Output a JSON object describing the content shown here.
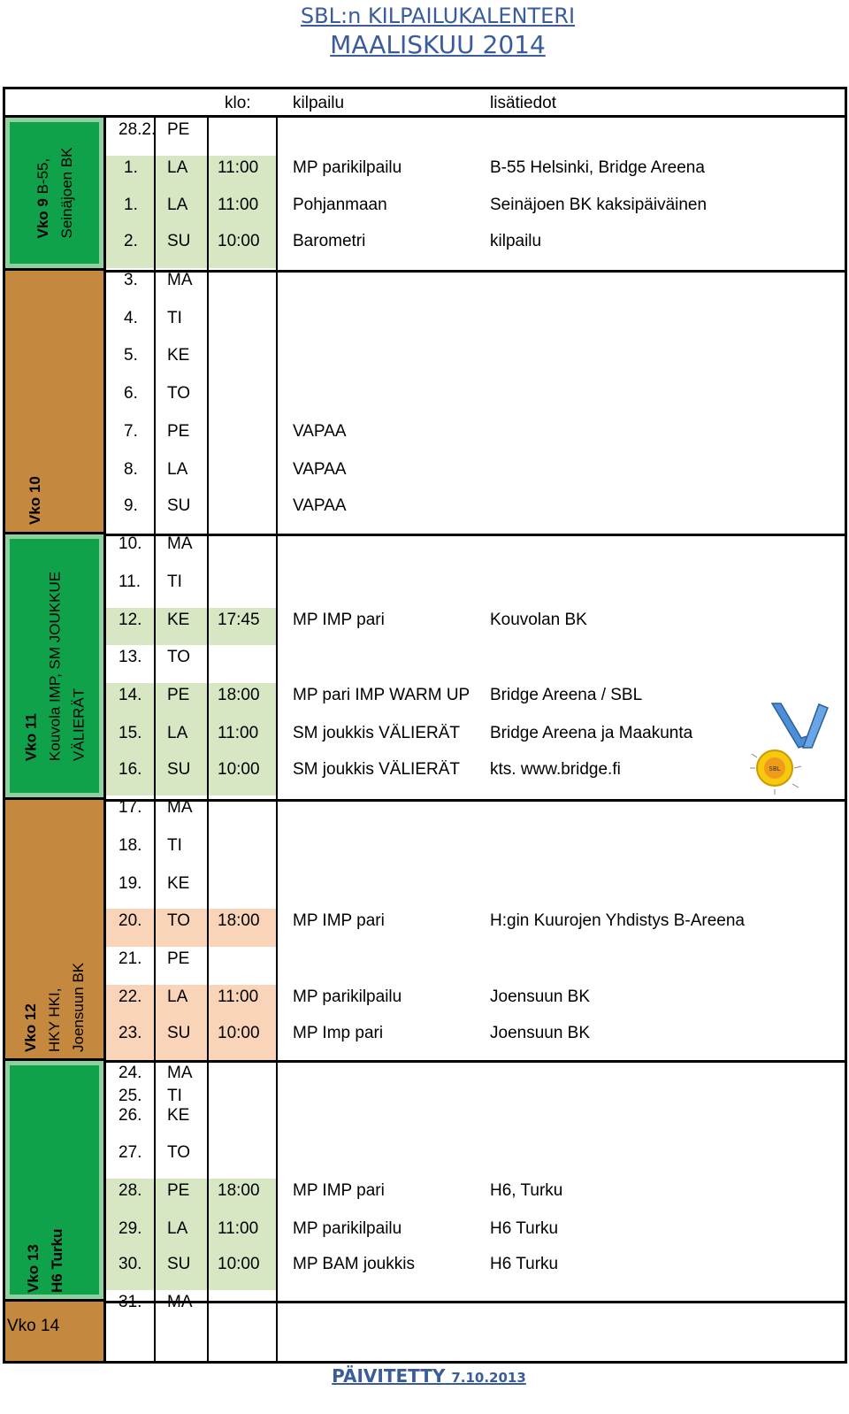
{
  "title": {
    "line1": "SBL:n KILPAILUKALENTERI",
    "line2": "MAALISKUU 2014"
  },
  "headers": {
    "time": "klo:",
    "event": "kilpailu",
    "info": "lisätiedot"
  },
  "weeks": [
    {
      "label_bold": "Vko 9",
      "label_rest": "B-55,",
      "line2": "Seinäjoen BK",
      "line3": ""
    },
    {
      "label_bold": "Vko 10",
      "label_rest": "",
      "line2": "",
      "line3": ""
    },
    {
      "label_bold": "Vko  11",
      "label_rest": "",
      "line2": "Kouvola IMP, SM JOUKKUE",
      "line3": "VÄLIERÄT"
    },
    {
      "label_bold": "Vko 12",
      "label_rest": "",
      "line2": "HKY HKI,",
      "line3": "Joensuun BK"
    },
    {
      "label_bold": "Vko 13",
      "label_rest": "",
      "line2": "H6 Turku",
      "line3": ""
    },
    {
      "label_bold": "",
      "label_rest": "Vko 14",
      "line2": "",
      "line3": ""
    }
  ],
  "rows": [
    {
      "date": "28.2.",
      "day": "PE",
      "time": "",
      "event": "",
      "info": ""
    },
    {
      "date": "1.",
      "day": "LA",
      "time": "11:00",
      "event": "MP parikilpailu",
      "info": "B-55 Helsinki, Bridge Areena"
    },
    {
      "date": "1.",
      "day": "LA",
      "time": "11:00",
      "event": "Pohjanmaan",
      "info": "Seinäjoen BK kaksipäiväinen"
    },
    {
      "date": "2.",
      "day": "SU",
      "time": "10:00",
      "event": "Barometri",
      "info": "kilpailu"
    },
    {
      "date": "3.",
      "day": "MA",
      "time": "",
      "event": "",
      "info": ""
    },
    {
      "date": "4.",
      "day": "TI",
      "time": "",
      "event": "",
      "info": ""
    },
    {
      "date": "5.",
      "day": "KE",
      "time": "",
      "event": "",
      "info": ""
    },
    {
      "date": "6.",
      "day": "TO",
      "time": "",
      "event": "",
      "info": ""
    },
    {
      "date": "7.",
      "day": "PE",
      "time": "",
      "event": "VAPAA",
      "info": ""
    },
    {
      "date": "8.",
      "day": "LA",
      "time": "",
      "event": "VAPAA",
      "info": ""
    },
    {
      "date": "9.",
      "day": "SU",
      "time": "",
      "event": "VAPAA",
      "info": ""
    },
    {
      "date": "10.",
      "day": "MA",
      "time": "",
      "event": "",
      "info": ""
    },
    {
      "date": "11.",
      "day": "TI",
      "time": "",
      "event": "",
      "info": ""
    },
    {
      "date": "12.",
      "day": "KE",
      "time": "17:45",
      "event": "MP IMP pari",
      "info": "Kouvolan BK"
    },
    {
      "date": "13.",
      "day": "TO",
      "time": "",
      "event": "",
      "info": ""
    },
    {
      "date": "14.",
      "day": "PE",
      "time": "18:00",
      "event": "MP pari IMP WARM UP",
      "info": "Bridge Areena / SBL"
    },
    {
      "date": "15.",
      "day": "LA",
      "time": "11:00",
      "event": "SM joukkis VÄLIERÄT",
      "info": "Bridge Areena ja Maakunta"
    },
    {
      "date": "16.",
      "day": "SU",
      "time": "10:00",
      "event": "SM joukkis VÄLIERÄT",
      "info": "kts. www.bridge.fi"
    },
    {
      "date": "17.",
      "day": "MA",
      "time": "",
      "event": "",
      "info": ""
    },
    {
      "date": "18.",
      "day": "TI",
      "time": "",
      "event": "",
      "info": ""
    },
    {
      "date": "19.",
      "day": "KE",
      "time": "",
      "event": "",
      "info": ""
    },
    {
      "date": "20.",
      "day": "TO",
      "time": "18:00",
      "event": "MP IMP pari",
      "info": "H:gin Kuurojen Yhdistys B-Areena"
    },
    {
      "date": "21.",
      "day": "PE",
      "time": "",
      "event": "",
      "info": ""
    },
    {
      "date": "22.",
      "day": "LA",
      "time": "11:00",
      "event": "MP parikilpailu",
      "info": "Joensuun BK"
    },
    {
      "date": "23.",
      "day": "SU",
      "time": "10:00",
      "event": "MP Imp pari",
      "info": "Joensuun BK"
    },
    {
      "date": "24.",
      "day": "MA",
      "time": "",
      "event": "",
      "info": ""
    },
    {
      "date": "25.",
      "day": "TI",
      "time": "",
      "event": "",
      "info": ""
    },
    {
      "date": "26.",
      "day": "KE",
      "time": "",
      "event": "",
      "info": ""
    },
    {
      "date": "27.",
      "day": "TO",
      "time": "",
      "event": "",
      "info": ""
    },
    {
      "date": "28.",
      "day": "PE",
      "time": "18:00",
      "event": "MP IMP pari",
      "info": "H6, Turku"
    },
    {
      "date": "29.",
      "day": "LA",
      "time": "11:00",
      "event": "MP parikilpailu",
      "info": "H6 Turku"
    },
    {
      "date": "30.",
      "day": "SU",
      "time": "10:00",
      "event": "MP BAM joukkis",
      "info": "H6 Turku"
    },
    {
      "date": "31.",
      "day": "MA",
      "time": "",
      "event": "",
      "info": ""
    }
  ],
  "updated": {
    "label": "PÄIVITETTY",
    "date": "7.10.2013"
  },
  "medal": {
    "icon": "medal-icon",
    "text": "SBL"
  },
  "colors": {
    "title": "#3a5c9c",
    "green_week": "#0fa24b",
    "brown_week": "#c4893e",
    "green_cell": "#d7e7c4",
    "peach_cell": "#f9d4b8"
  }
}
